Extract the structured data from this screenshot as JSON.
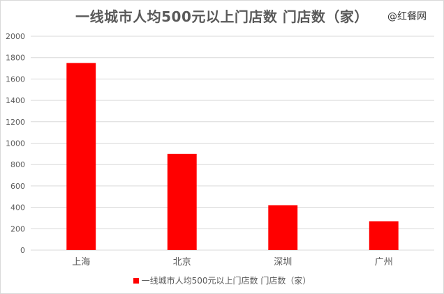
{
  "watermark": "@红餐网",
  "colors": {
    "bar": "#ff0000",
    "grid": "#d9d9d9",
    "text": "#595959"
  },
  "chart_data": {
    "type": "bar",
    "title": "一线城市人均500元以上门店数 门店数（家）",
    "xlabel": "",
    "ylabel": "",
    "categories": [
      "上海",
      "北京",
      "深圳",
      "广州"
    ],
    "series": [
      {
        "name": "一线城市人均500元以上门店数 门店数（家）",
        "values": [
          1750,
          900,
          420,
          270
        ]
      }
    ],
    "ylim": [
      0,
      2000
    ],
    "yticks": [
      0,
      200,
      400,
      600,
      800,
      1000,
      1200,
      1400,
      1600,
      1800,
      2000
    ],
    "grid": true,
    "legend": "bottom"
  }
}
